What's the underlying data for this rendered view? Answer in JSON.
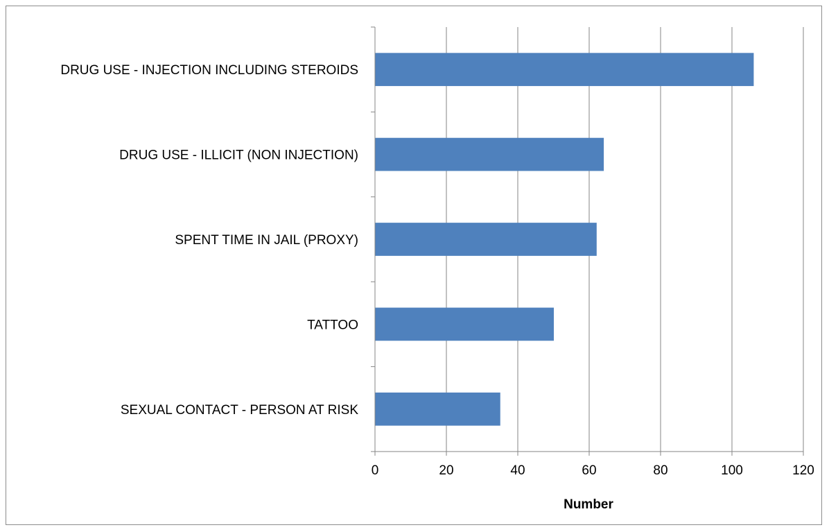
{
  "chart_data": {
    "type": "bar",
    "orientation": "horizontal",
    "categories": [
      "DRUG USE - INJECTION INCLUDING STEROIDS",
      "DRUG USE - ILLICIT (NON INJECTION)",
      "SPENT TIME IN JAIL (PROXY)",
      "TATTOO",
      "SEXUAL CONTACT - PERSON AT RISK"
    ],
    "values": [
      106,
      64,
      62,
      50,
      35
    ],
    "title": "",
    "xlabel": "Number",
    "ylabel": "",
    "xlim": [
      0,
      120
    ],
    "xticks": [
      "0",
      "20",
      "40",
      "60",
      "80",
      "100",
      "120"
    ],
    "grid": "vertical",
    "legend": "none",
    "bar_color": "#4f81bd"
  }
}
